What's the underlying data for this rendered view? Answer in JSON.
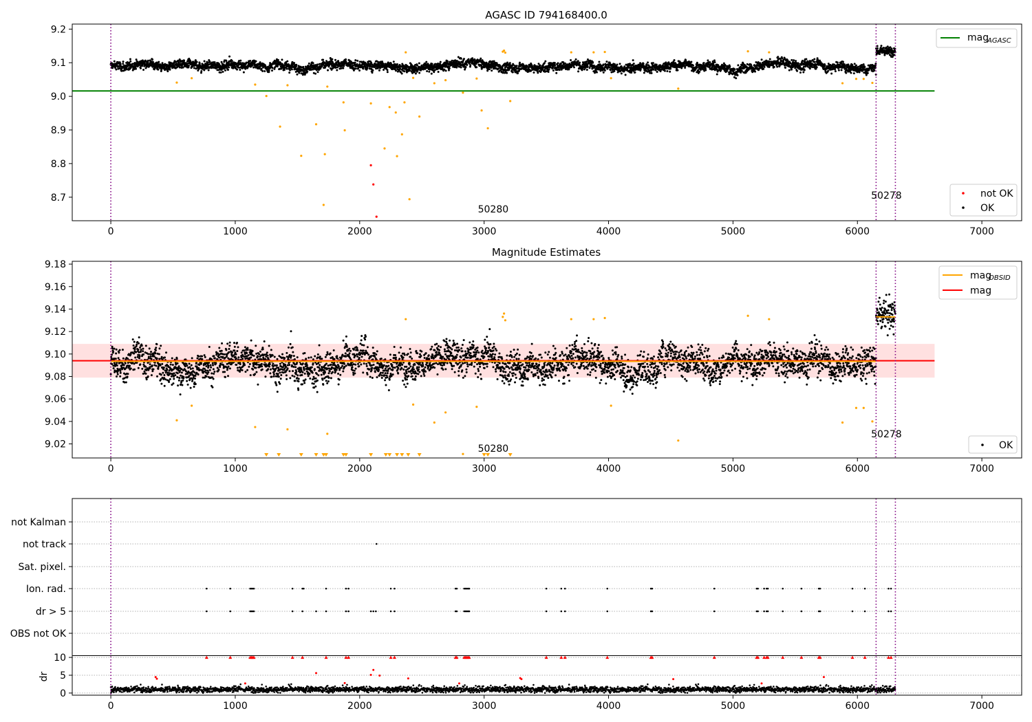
{
  "chart_data": [
    {
      "type": "scatter",
      "title": "AGASC ID 794168400.0",
      "xlim": [
        -310,
        7320
      ],
      "ylim": [
        8.63,
        9.215
      ],
      "xticks": [
        0,
        1000,
        2000,
        3000,
        4000,
        5000,
        6000,
        7000
      ],
      "xtick_labels": [
        "0",
        "1000",
        "2000",
        "3000",
        "4000",
        "5000",
        "6000",
        "7000"
      ],
      "yticks": [
        8.7,
        8.8,
        8.9,
        9.0,
        9.1,
        9.2
      ],
      "ytick_labels": [
        "8.7",
        "8.8",
        "8.9",
        "9.0",
        "9.1",
        "9.2"
      ],
      "vlines": [
        0,
        6150,
        6305
      ],
      "obsid_labels": [
        {
          "text": "50280",
          "x": 2950,
          "y": 8.655
        },
        {
          "text": "50278",
          "x": 6110,
          "y": 8.695
        }
      ],
      "series": [
        {
          "name": "OK",
          "color": "#000000",
          "marker": "dot",
          "mean": 9.09,
          "noise": 0.012,
          "trend_amplitude": 0.008
        },
        {
          "name": "not OK",
          "color": "#ff0000",
          "marker": "dot",
          "x": [
            2090,
            2110,
            2135
          ],
          "y": [
            8.795,
            8.738,
            8.642
          ]
        },
        {
          "name": "suspect",
          "color": "#ffa500",
          "marker": "dot",
          "x": [
            530,
            650,
            1160,
            1250,
            1360,
            1420,
            1530,
            1650,
            1710,
            1720,
            1740,
            1870,
            1880,
            2090,
            2200,
            2240,
            2290,
            2300,
            2340,
            2360,
            2400,
            2430,
            2480,
            2600,
            2690,
            2830,
            2940,
            2980,
            3030,
            3210,
            5990,
            4020,
            4560,
            5880,
            6050,
            6120,
            3150,
            3160,
            3170,
            3700,
            3880,
            3970,
            5120,
            5290,
            2370
          ],
          "y": [
            9.041,
            9.054,
            9.035,
            9.001,
            8.91,
            9.033,
            8.823,
            8.917,
            8.677,
            8.828,
            9.029,
            8.982,
            8.899,
            8.979,
            8.845,
            8.968,
            8.952,
            8.822,
            8.887,
            8.982,
            8.694,
            9.055,
            8.94,
            9.039,
            9.048,
            9.011,
            9.053,
            8.958,
            8.905,
            8.986,
            9.052,
            9.054,
            9.023,
            9.039,
            9.052,
            9.04,
            9.133,
            9.136,
            9.13,
            9.131,
            9.131,
            9.132,
            9.134,
            9.131,
            9.131
          ]
        }
      ],
      "hlines": [
        {
          "name": "mag_AGASC",
          "y": 9.016,
          "x": [
            -310,
            6620
          ],
          "color": "#008000"
        }
      ],
      "legends": [
        {
          "position": "upper-right",
          "entries": [
            {
              "label": "mag",
              "subscript": "AGASC",
              "kind": "line",
              "color": "#008000"
            }
          ]
        },
        {
          "position": "lower-right",
          "entries": [
            {
              "label": "not OK",
              "kind": "dot",
              "color": "#ff0000"
            },
            {
              "label": "OK",
              "kind": "dot",
              "color": "#000000"
            }
          ]
        }
      ]
    },
    {
      "type": "scatter",
      "title": "Magnitude Estimates",
      "xlim": [
        -310,
        7320
      ],
      "ylim": [
        9.0075,
        9.1825
      ],
      "xticks": [
        0,
        1000,
        2000,
        3000,
        4000,
        5000,
        6000,
        7000
      ],
      "xtick_labels": [
        "0",
        "1000",
        "2000",
        "3000",
        "4000",
        "5000",
        "6000",
        "7000"
      ],
      "yticks": [
        9.02,
        9.04,
        9.06,
        9.08,
        9.1,
        9.12,
        9.14,
        9.16,
        9.18
      ],
      "ytick_labels": [
        "9.02",
        "9.04",
        "9.06",
        "9.08",
        "9.10",
        "9.12",
        "9.14",
        "9.16",
        "9.18"
      ],
      "vlines": [
        0,
        6150,
        6305
      ],
      "obsid_labels": [
        {
          "text": "50280",
          "x": 2950,
          "y": 9.013
        },
        {
          "text": "50278",
          "x": 6110,
          "y": 9.026
        }
      ],
      "band": {
        "y": [
          9.079,
          9.109
        ],
        "x": [
          -310,
          6620
        ],
        "color": "#ffcccc"
      },
      "hlines": [
        {
          "name": "mag",
          "y": 9.094,
          "x": [
            -310,
            6620
          ],
          "color": "#ff0000"
        },
        {
          "name": "mag_OBSID",
          "y": 9.0935,
          "x": [
            0,
            6150
          ],
          "color": "#ffa500"
        },
        {
          "name": "mag_OBSID_2",
          "y": 9.133,
          "x": [
            6150,
            6305
          ],
          "color": "#ffa500"
        }
      ],
      "lower_limit_markers": {
        "color": "#ffa500",
        "x": [
          1250,
          1350,
          1530,
          1650,
          1710,
          1730,
          1870,
          1890,
          2090,
          2210,
          2240,
          2300,
          2340,
          2390,
          2480,
          3000,
          3030,
          3210
        ]
      },
      "series": [
        {
          "name": "OK",
          "color": "#000000",
          "marker": "dot",
          "mean": 9.093,
          "noise": 0.012,
          "trend_amplitude": 0.008
        }
      ],
      "legends": [
        {
          "position": "upper-right",
          "entries": [
            {
              "label": "mag",
              "subscript": "OBSID",
              "kind": "line",
              "color": "#ffa500"
            },
            {
              "label": "mag",
              "kind": "line",
              "color": "#ff0000"
            }
          ]
        },
        {
          "position": "lower-right",
          "entries": [
            {
              "label": "OK",
              "kind": "dot",
              "color": "#000000"
            }
          ]
        }
      ]
    },
    {
      "type": "scatter",
      "title": "",
      "xlim": [
        -310,
        7320
      ],
      "xticks": [
        0,
        1000,
        2000,
        3000,
        4000,
        5000,
        6000,
        7000
      ],
      "xtick_labels": [
        "0",
        "1000",
        "2000",
        "3000",
        "4000",
        "5000",
        "6000",
        "7000"
      ],
      "flag_rows": [
        "not Kalman",
        "not track",
        "Sat. pixel.",
        "Ion. rad.",
        "dr > 5",
        "OBS not OK"
      ],
      "flag_points": {
        "not track": [
          2135
        ],
        "Ion. rad.": [
          770,
          960,
          1120,
          1130,
          1140,
          1150,
          1460,
          1540,
          1550,
          1730,
          1890,
          1910,
          2250,
          2280,
          2770,
          2780,
          2840,
          2850,
          2860,
          2870,
          2880,
          3500,
          3620,
          3650,
          3990,
          4340,
          4350,
          4850,
          5190,
          5200,
          5250,
          5270,
          5280,
          5400,
          5550,
          5690,
          5700,
          5960,
          6060,
          6250,
          6270
        ],
        "dr > 5": [
          770,
          960,
          1120,
          1130,
          1140,
          1150,
          1460,
          1540,
          1650,
          1730,
          1890,
          1910,
          2090,
          2110,
          2130,
          2250,
          2280,
          2770,
          2780,
          2840,
          2850,
          2860,
          2870,
          2880,
          3500,
          3620,
          3650,
          3990,
          4340,
          4350,
          4850,
          5190,
          5200,
          5250,
          5270,
          5280,
          5400,
          5550,
          5690,
          5700,
          5960,
          6060,
          6250,
          6270
        ]
      },
      "dr_ylabel": "dr",
      "dr_yticks": [
        0,
        5,
        10
      ],
      "dr_ytick_labels": [
        "0",
        "5",
        "10"
      ],
      "dr_ylim": [
        -0.6,
        10.4
      ],
      "dr_clipped_x": [
        770,
        960,
        1120,
        1130,
        1140,
        1150,
        1460,
        1540,
        1730,
        1890,
        1910,
        2250,
        2280,
        2770,
        2780,
        2840,
        2850,
        2860,
        2870,
        2880,
        3500,
        3620,
        3650,
        3990,
        4340,
        4350,
        4850,
        5190,
        5200,
        5250,
        5270,
        5280,
        5400,
        5550,
        5690,
        5700,
        5960,
        6060,
        6250,
        6270
      ],
      "dr_red_points": {
        "x": [
          360,
          370,
          1650,
          1880,
          2090,
          2110,
          2160,
          2390,
          2800,
          3290,
          3300,
          4520,
          5230,
          5730,
          1080
        ],
        "y": [
          4.5,
          4.0,
          5.6,
          2.8,
          5.1,
          6.5,
          4.9,
          4.1,
          2.7,
          4.2,
          3.9,
          3.9,
          2.7,
          4.5,
          2.7
        ]
      },
      "dr_series": {
        "name": "dr",
        "color": "#000000",
        "mean": 1.0,
        "noise": 0.5
      },
      "vlines": [
        0,
        6150,
        6305
      ]
    }
  ]
}
